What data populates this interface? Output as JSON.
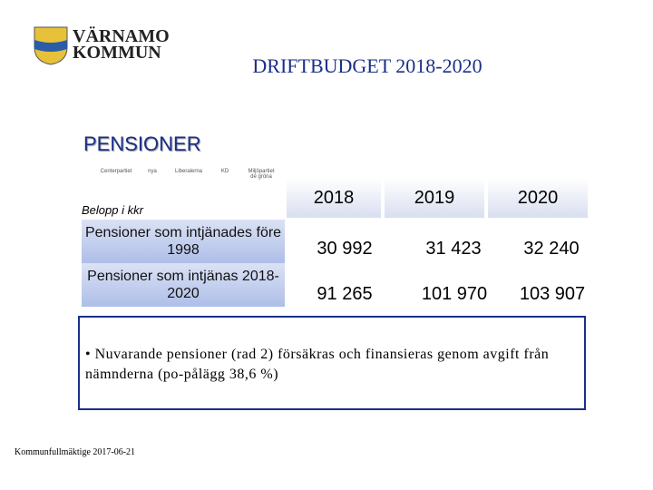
{
  "logo": {
    "line1": "VÄRNAMO",
    "line2": "KOMMUN"
  },
  "header": {
    "title": "DRIFTBUDGET 2018-2020"
  },
  "section": {
    "title": "PENSIONER"
  },
  "party_logos": [
    "Centerpartiet",
    "nya",
    "Liberalerna",
    "KD",
    "Miljöpartiet de gröna"
  ],
  "table": {
    "unit_label": "Belopp i kkr",
    "columns": [
      "2018",
      "2019",
      "2020"
    ],
    "rows": [
      {
        "label": "Pensioner som intjänades före 1998",
        "values": [
          "30 992",
          "31 423",
          "32 240"
        ]
      },
      {
        "label": "Pensioner som intjänas 2018-2020",
        "values": [
          "91 265",
          "101 970",
          "103 907"
        ]
      }
    ]
  },
  "note": {
    "bullet": "•",
    "text": "Nuvarande pensioner (rad 2) försäkras och finansieras genom avgift från nämnderna (po-pålägg 38,6 %)"
  },
  "footer": {
    "text": "Kommunfullmäktige 2017-06-21"
  }
}
